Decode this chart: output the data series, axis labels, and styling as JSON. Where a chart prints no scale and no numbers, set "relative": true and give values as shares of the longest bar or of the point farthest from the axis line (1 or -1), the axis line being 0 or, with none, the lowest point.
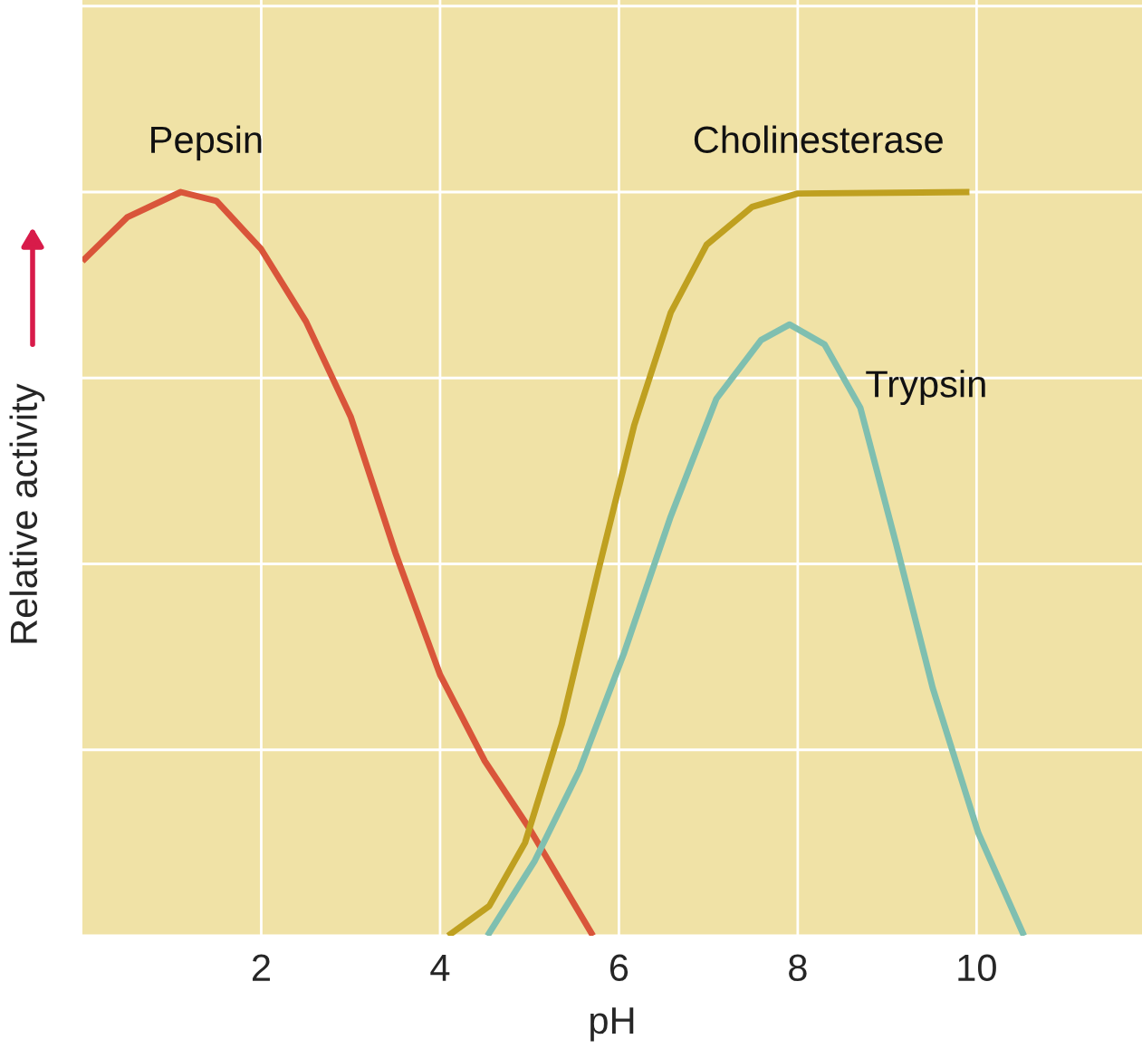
{
  "chart_data": {
    "type": "line",
    "relative": true,
    "xlabel": "pH",
    "ylabel": "Relative activity",
    "xlim": [
      0,
      11.85
    ],
    "xticks": [
      2,
      4,
      6,
      8,
      10
    ],
    "grid": true,
    "legend": false,
    "marker": "none",
    "line_style": "solid",
    "series": [
      {
        "name": "Pepsin",
        "color": "#d9553a",
        "x": [
          0,
          0.5,
          1.1,
          1.5,
          2,
          2.5,
          3,
          3.5,
          4,
          4.5,
          5,
          5.71
        ],
        "values": [
          0.907,
          0.966,
          1.0,
          0.988,
          0.923,
          0.826,
          0.698,
          0.515,
          0.351,
          0.235,
          0.144,
          0
        ]
      },
      {
        "name": "Cholinesterase",
        "color": "#bfa020",
        "x": [
          4.09,
          4.55,
          4.95,
          5.36,
          5.77,
          6.17,
          6.58,
          6.98,
          7.49,
          8,
          9.92
        ],
        "values": [
          0,
          0.04,
          0.125,
          0.284,
          0.491,
          0.686,
          0.838,
          0.929,
          0.98,
          0.998,
          1.0
        ]
      },
      {
        "name": "Trypsin",
        "color": "#7fbfb0",
        "x": [
          4.53,
          5.06,
          5.56,
          6.06,
          6.58,
          7.09,
          7.59,
          7.91,
          8.3,
          8.7,
          9.1,
          9.51,
          10.02,
          10.53
        ],
        "values": [
          0,
          0.101,
          0.223,
          0.381,
          0.564,
          0.722,
          0.801,
          0.822,
          0.795,
          0.71,
          0.527,
          0.333,
          0.138,
          0
        ]
      }
    ]
  }
}
